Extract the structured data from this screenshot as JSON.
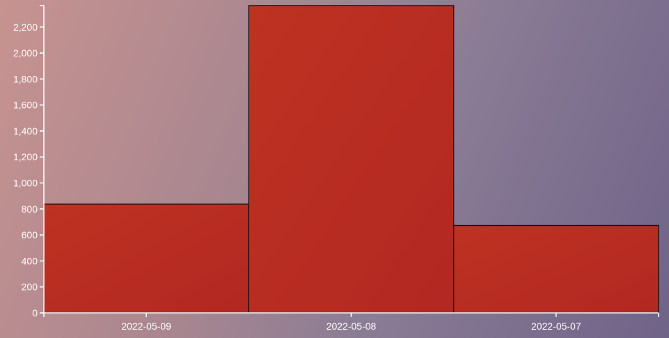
{
  "chart_data": {
    "type": "bar",
    "categories": [
      "2022-05-09",
      "2022-05-08",
      "2022-05-07"
    ],
    "values": [
      837,
      2365,
      673
    ],
    "ylim": [
      0,
      2365
    ],
    "yticks": [
      0,
      200,
      400,
      600,
      800,
      1000,
      1200,
      1400,
      1600,
      1800,
      2000,
      2200
    ],
    "ytick_labels": [
      "0",
      "200",
      "400",
      "600",
      "800",
      "1,000",
      "1,200",
      "1,400",
      "1,600",
      "1,800",
      "2,000",
      "2,200"
    ],
    "title": "",
    "xlabel": "",
    "ylabel": "",
    "grid": false,
    "legend": "none",
    "bar_color": "#bb2e23",
    "bar_edge_color": "#1a0f0f",
    "axis_color": "#ffffff"
  }
}
